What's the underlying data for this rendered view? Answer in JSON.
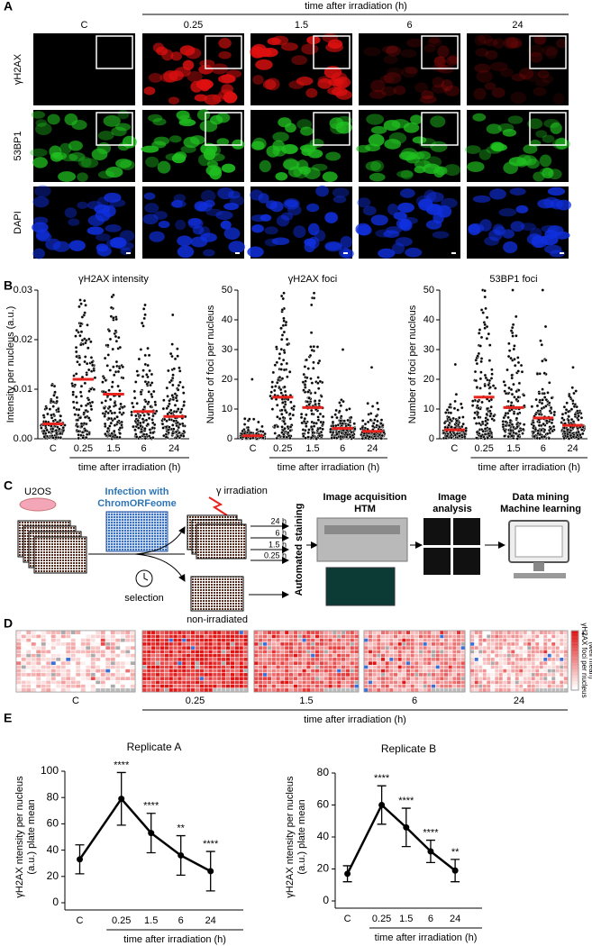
{
  "letters": [
    "A",
    "B",
    "C",
    "D",
    "E"
  ],
  "panel_a": {
    "header": "time after irradiation (h)",
    "columns": [
      "C",
      "0.25",
      "1.5",
      "6",
      "24"
    ],
    "rows": [
      "γH2AX",
      "53BP1",
      "DAPI"
    ]
  },
  "chart_data": [
    {
      "type": "strip",
      "title": "γH2AX intensity",
      "ylabel": [
        "Intensity per nucleus (a.u.)"
      ],
      "xlabel": "time after irradiation (h)",
      "categories": [
        "C",
        "0.25",
        "1.5",
        "6",
        "24"
      ],
      "values": [
        0.003,
        0.012,
        0.009,
        0.0055,
        0.0045
      ],
      "max": [
        0.011,
        0.028,
        0.029,
        0.027,
        0.025
      ],
      "color": "#e8231d",
      "ylim": [
        0,
        0.03
      ],
      "yticks": [
        {
          "value": 0,
          "label": "0.00"
        },
        0.01,
        0.02,
        0.03
      ]
    },
    {
      "type": "strip",
      "title": "γH2AX foci",
      "ylabel": [
        "Number of foci per nucleus"
      ],
      "xlabel": "time after irradiation (h)",
      "categories": [
        "C",
        "0.25",
        "1.5",
        "6",
        "24"
      ],
      "values": [
        1,
        14,
        10.5,
        3.5,
        2.5
      ],
      "max": [
        20,
        49,
        49,
        30,
        24
      ],
      "color": "#e8231d",
      "ylim": [
        0,
        50
      ],
      "yticks": [
        0,
        10,
        20,
        30,
        40,
        50
      ]
    },
    {
      "type": "strip",
      "title": "53BP1 foci",
      "ylabel": [
        "Number of foci per nucleus"
      ],
      "xlabel": "time after irradiation (h)",
      "categories": [
        "C",
        "0.25",
        "1.5",
        "6",
        "24"
      ],
      "values": [
        3,
        14,
        10.5,
        7,
        4.5
      ],
      "max": [
        25,
        50,
        50,
        50,
        24
      ],
      "color": "#e8231d",
      "ylim": [
        0,
        50
      ],
      "yticks": [
        0,
        10,
        20,
        30,
        40,
        50
      ]
    },
    {
      "type": "line",
      "title": "Replicate A",
      "ylabel": [
        "γH2AX ntensity per nucleus",
        "(a.u.) plate mean"
      ],
      "xlabel": "time after irradiation (h)",
      "categories": [
        "C",
        "0.25",
        "1.5",
        "6",
        "24"
      ],
      "values": [
        33,
        79,
        53,
        36,
        24
      ],
      "errors": [
        11,
        20,
        15,
        15,
        15
      ],
      "annotations": [
        null,
        "****",
        "****",
        "**",
        "****"
      ],
      "color": "#000000",
      "ylim": [
        0,
        100
      ],
      "yticks": [
        0,
        20,
        40,
        60,
        80,
        100
      ]
    },
    {
      "type": "line",
      "title": "Replicate B",
      "ylabel": [
        "γH2AX ntensity per nucleus",
        "(a.u.) plate mean"
      ],
      "xlabel": "time after irradiation (h)",
      "categories": [
        "C",
        "0.25",
        "1.5",
        "6",
        "24"
      ],
      "values": [
        17,
        60,
        46,
        31,
        19
      ],
      "errors": [
        5,
        12,
        12,
        7,
        7
      ],
      "annotations": [
        null,
        "****",
        "****",
        "****",
        "**"
      ],
      "color": "#000000",
      "ylim": [
        0,
        80
      ],
      "yticks": [
        0,
        20,
        40,
        60,
        80
      ]
    }
  ],
  "diagram": {
    "cells": "U2OS",
    "infection": [
      "Infection with",
      "ChromORFeome"
    ],
    "irradiation": "γ irradiation",
    "times": [
      "24 h",
      "6 h",
      "1.5 h",
      "0.25 h"
    ],
    "selection": "selection",
    "control": "non-irradiated",
    "staining": "Automated staining",
    "acquisition": [
      "Image acquisition",
      "HTM"
    ],
    "analysis": [
      "Image",
      "analysis"
    ],
    "mining": [
      "Data mining",
      "Machine learning"
    ]
  },
  "heatmap": {
    "plates": [
      "C",
      "0.25",
      "1.5",
      "6",
      "24"
    ],
    "xlabel": "time after irradiation (h)",
    "legend_label": [
      "γH2AX foci per nucleus",
      "(well mean)"
    ],
    "legend_high": "+",
    "legend_low": "-"
  }
}
